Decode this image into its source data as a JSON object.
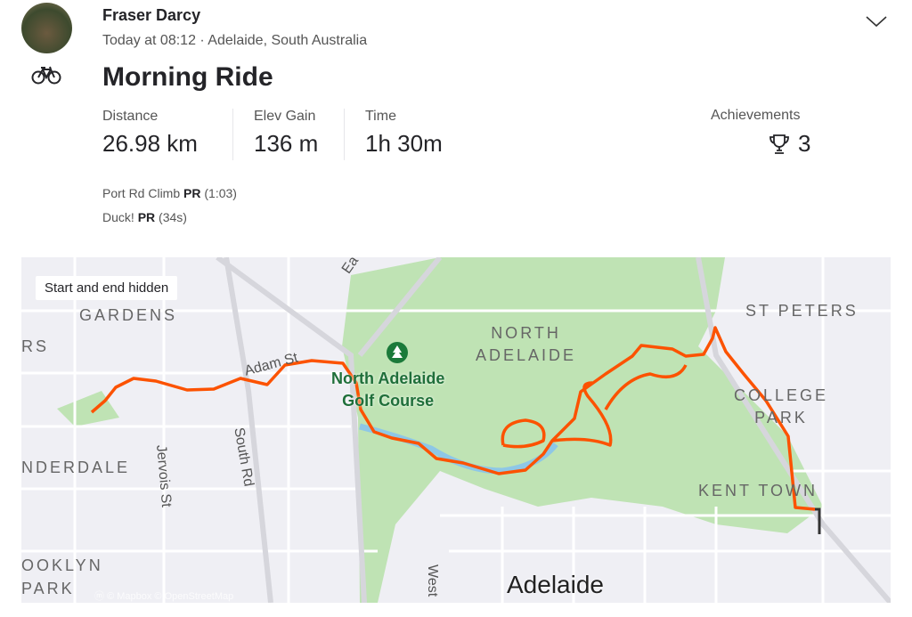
{
  "header": {
    "athlete_name": "Fraser Darcy",
    "meta": "Today at 08:12 · Adelaide, South Australia",
    "activity_icon": "bicycle-icon",
    "menu_icon": "chevron-down-icon"
  },
  "activity": {
    "title": "Morning Ride"
  },
  "stats": [
    {
      "label": "Distance",
      "value": "26.98 km"
    },
    {
      "label": "Elev Gain",
      "value": "136 m"
    },
    {
      "label": "Time",
      "value": "1h 30m"
    }
  ],
  "achievements": {
    "label": "Achievements",
    "count": "3",
    "icon": "trophy-icon"
  },
  "prs": [
    {
      "segment": "Port Rd Climb",
      "badge": "PR",
      "time": "(1:03)"
    },
    {
      "segment": "Duck!",
      "badge": "PR",
      "time": "(34s)"
    }
  ],
  "map": {
    "privacy_label": "Start and end hidden",
    "route_color": "#fc5200",
    "attribution": "© Mapbox © OpenStreetMap",
    "labels": {
      "gardens": "GARDENS",
      "rs": "RS",
      "nderdale": "NDERDALE",
      "ooklyn": "OOKLYN",
      "park": "PARK",
      "jervois": "Jervois St",
      "south_rd": "South Rd",
      "adam_st": "Adam St",
      "ea": "Ea",
      "golf1": "North Adelaide",
      "golf2": "Golf Course",
      "north": "NORTH",
      "adelaide_sub": "ADELAIDE",
      "st_peters": "ST PETERS",
      "college": "COLLEGE",
      "college_park": "PARK",
      "kent_town": "KENT TOWN",
      "west": "West",
      "adelaide": "Adelaide"
    }
  }
}
